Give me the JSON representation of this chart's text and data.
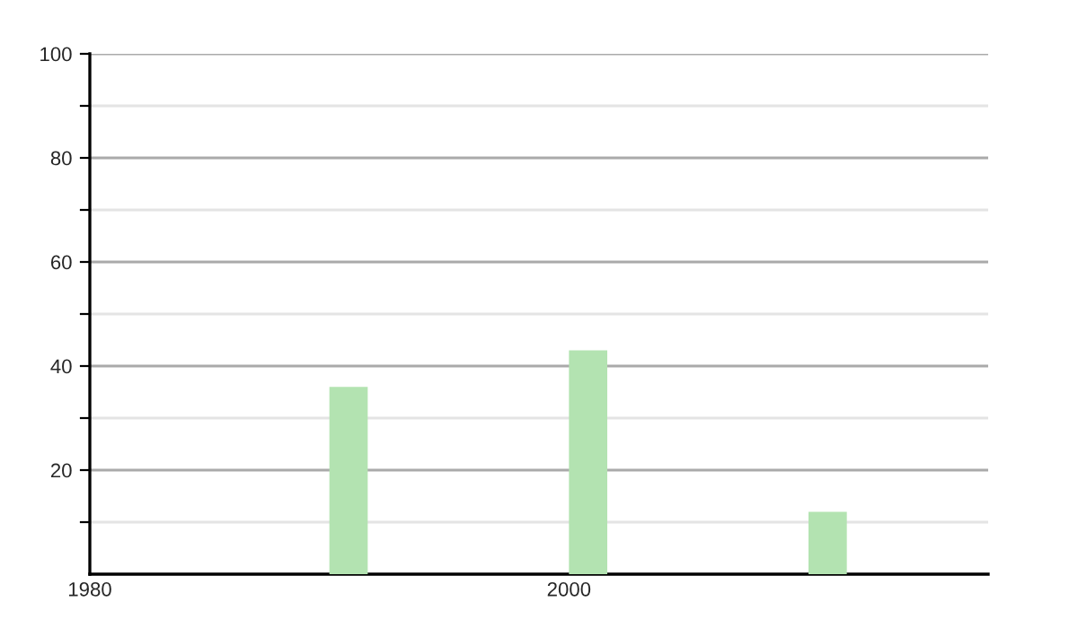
{
  "chart_data": {
    "type": "bar",
    "x": [
      1990,
      2000,
      2010
    ],
    "values": [
      36,
      43,
      12
    ],
    "color": "#b3e3b1",
    "xlim": [
      1980,
      2017.5
    ],
    "xticks": [
      1980,
      2000
    ],
    "ylim": [
      0,
      100
    ],
    "yticks": [
      {
        "value": 10,
        "label": null
      },
      20,
      {
        "value": 30,
        "label": null
      },
      40,
      {
        "value": 50,
        "label": null
      },
      60,
      {
        "value": 70,
        "label": null
      },
      80,
      {
        "value": 90,
        "label": null
      },
      100
    ],
    "grid": "y"
  }
}
